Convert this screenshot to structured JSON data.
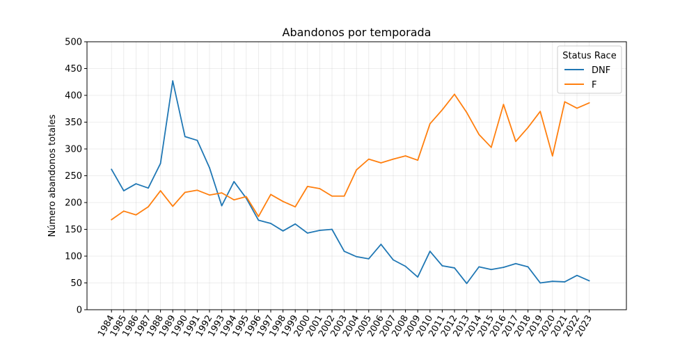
{
  "chart_data": {
    "type": "line",
    "title": "Abandonos por temporada",
    "xlabel": "",
    "ylabel": "Número abandonos totales",
    "ylim": [
      0,
      500
    ],
    "yticks": [
      "0",
      "50",
      "100",
      "150",
      "200",
      "250",
      "300",
      "350",
      "400",
      "450",
      "500"
    ],
    "grid": true,
    "legend": {
      "title": "Status Race",
      "placement": "top-right"
    },
    "x": [
      "1984",
      "1985",
      "1986",
      "1987",
      "1988",
      "1989",
      "1990",
      "1991",
      "1992",
      "1993",
      "1994",
      "1995",
      "1996",
      "1997",
      "1998",
      "1999",
      "2000",
      "2001",
      "2002",
      "2003",
      "2004",
      "2005",
      "2006",
      "2007",
      "2008",
      "2009",
      "2010",
      "2011",
      "2012",
      "2013",
      "2014",
      "2015",
      "2016",
      "2017",
      "2018",
      "2019",
      "2020",
      "2021",
      "2022",
      "2023"
    ],
    "series": [
      {
        "name": "DNF",
        "color": "#1f77b4",
        "values": [
          262,
          222,
          235,
          227,
          273,
          427,
          323,
          316,
          265,
          194,
          239,
          208,
          167,
          161,
          147,
          160,
          143,
          148,
          150,
          109,
          99,
          95,
          122,
          93,
          81,
          61,
          109,
          82,
          78,
          49,
          80,
          75,
          79,
          86,
          80,
          50,
          53,
          52,
          64,
          54
        ]
      },
      {
        "name": "F",
        "color": "#ff7f0e",
        "values": [
          168,
          184,
          177,
          192,
          222,
          193,
          219,
          223,
          214,
          218,
          205,
          211,
          174,
          215,
          202,
          192,
          230,
          226,
          212,
          212,
          261,
          281,
          274,
          281,
          287,
          279,
          347,
          373,
          402,
          368,
          327,
          303,
          383,
          314,
          340,
          370,
          287,
          388,
          376,
          386
        ]
      }
    ]
  }
}
